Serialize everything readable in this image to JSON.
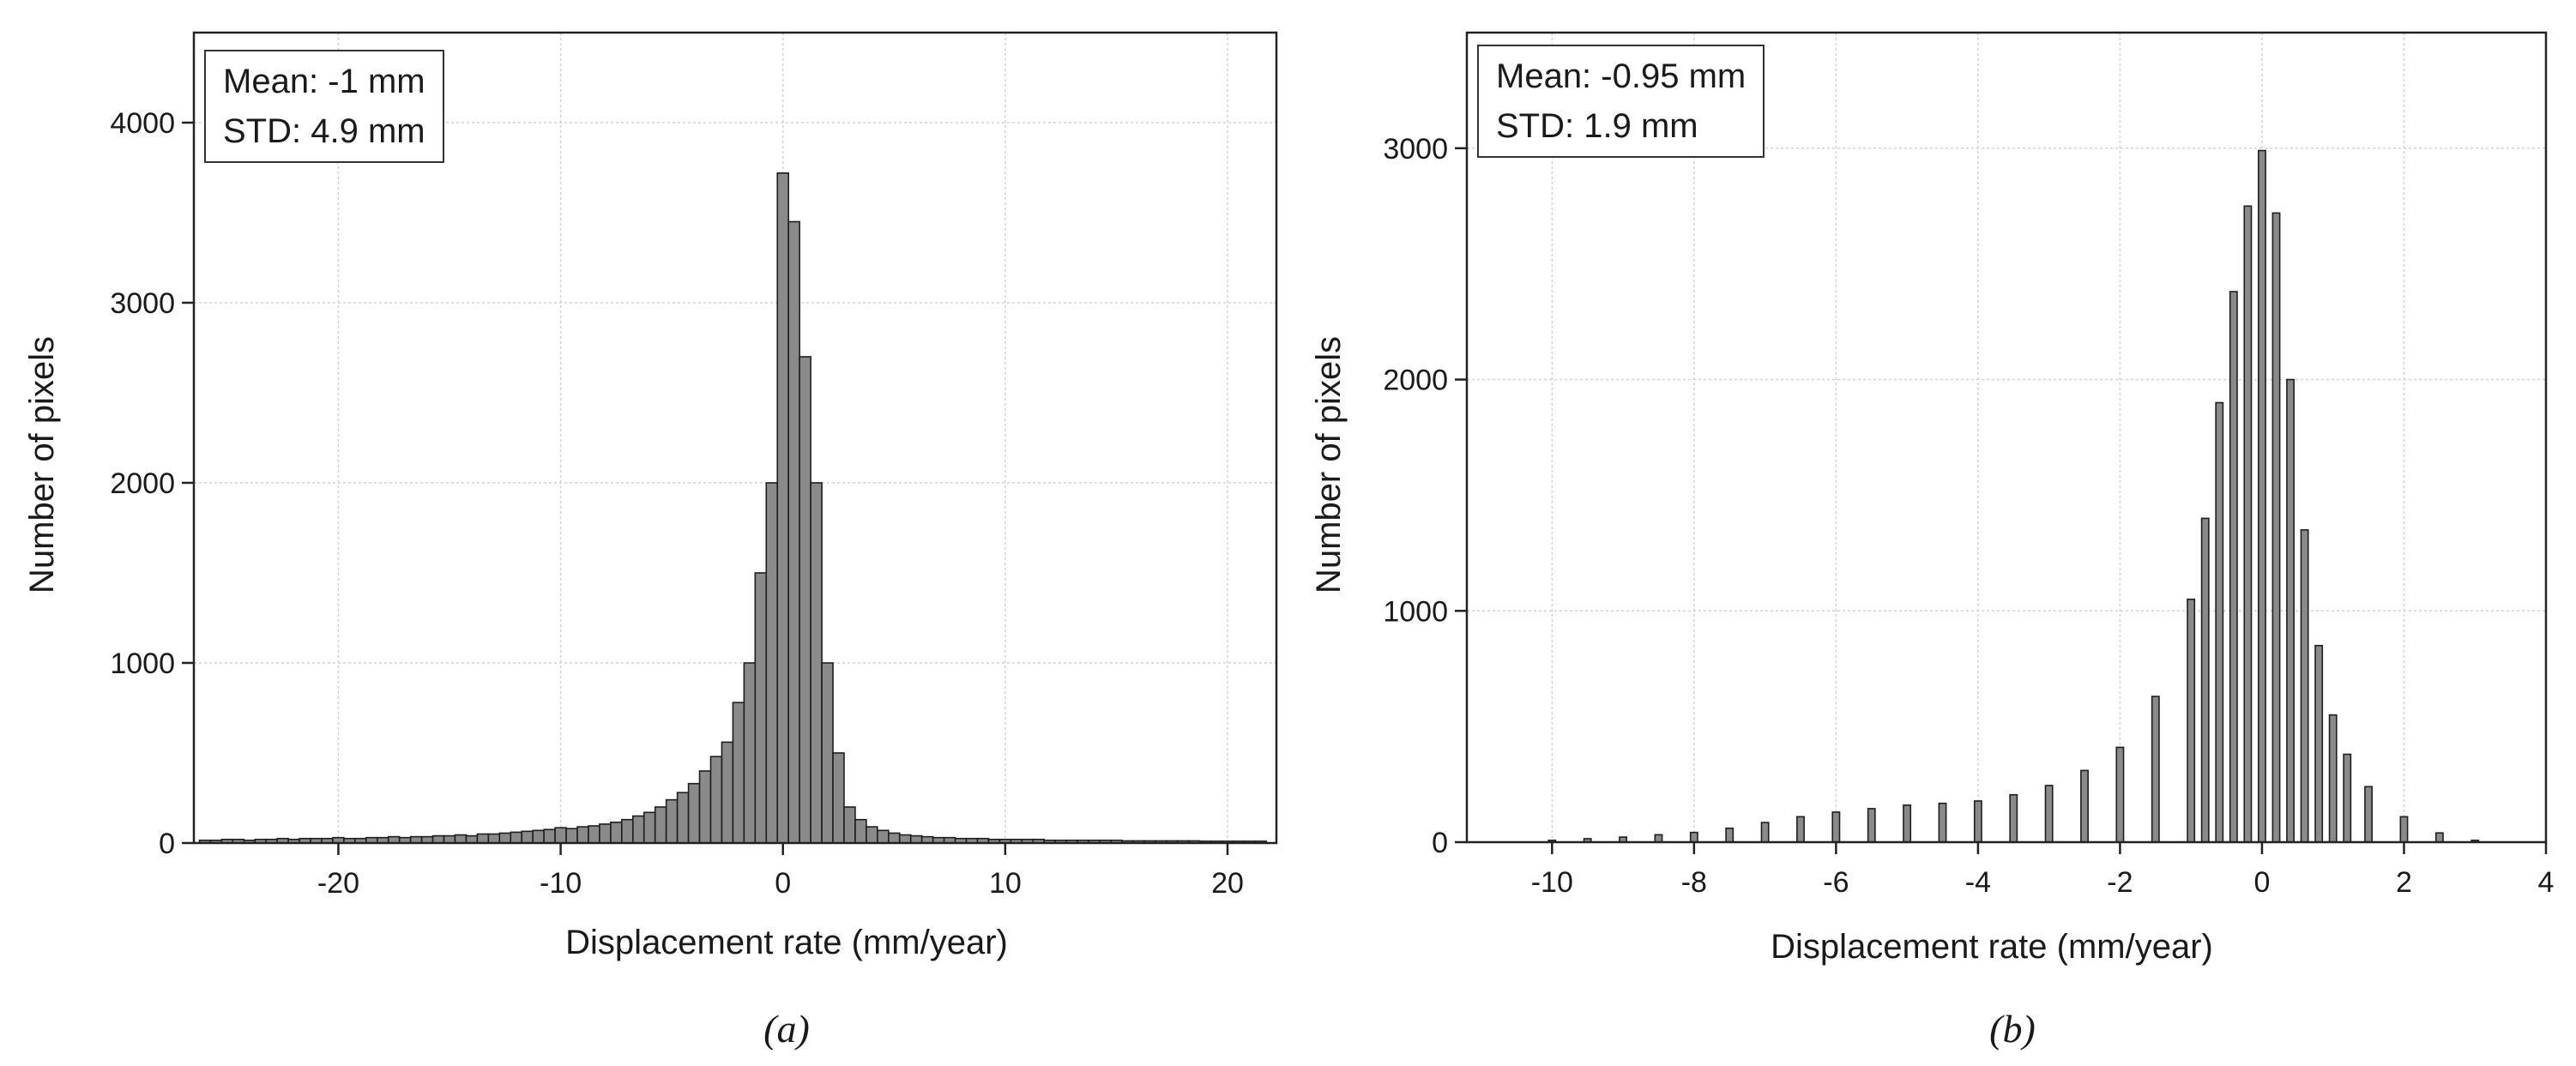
{
  "chart_data": [
    {
      "type": "bar",
      "panel_label": "(a)",
      "xlabel": "Displacement rate (mm/year)",
      "ylabel": "Number of pixels",
      "xlim": [
        -26.5,
        22.2
      ],
      "ylim": [
        0,
        4500
      ],
      "xticks": [
        -20,
        -10,
        0,
        10,
        20
      ],
      "yticks": [
        0,
        1000,
        2000,
        3000,
        4000
      ],
      "grid": true,
      "bin_width": 0.5,
      "annotation": {
        "lines": [
          "Mean: -1 mm",
          "STD: 4.9 mm"
        ],
        "position": "top-left"
      },
      "bars": [
        [
          -26,
          15
        ],
        [
          -25.5,
          15
        ],
        [
          -25,
          20
        ],
        [
          -24.5,
          20
        ],
        [
          -24,
          15
        ],
        [
          -23.5,
          20
        ],
        [
          -23,
          20
        ],
        [
          -22.5,
          25
        ],
        [
          -22,
          20
        ],
        [
          -21.5,
          25
        ],
        [
          -21,
          25
        ],
        [
          -20.5,
          25
        ],
        [
          -20,
          30
        ],
        [
          -19.5,
          25
        ],
        [
          -19,
          25
        ],
        [
          -18.5,
          30
        ],
        [
          -18,
          30
        ],
        [
          -17.5,
          35
        ],
        [
          -17,
          30
        ],
        [
          -16.5,
          35
        ],
        [
          -16,
          35
        ],
        [
          -15.5,
          40
        ],
        [
          -15,
          40
        ],
        [
          -14.5,
          45
        ],
        [
          -14,
          40
        ],
        [
          -13.5,
          50
        ],
        [
          -13,
          50
        ],
        [
          -12.5,
          55
        ],
        [
          -12,
          60
        ],
        [
          -11.5,
          65
        ],
        [
          -11,
          70
        ],
        [
          -10.5,
          75
        ],
        [
          -10,
          85
        ],
        [
          -9.5,
          80
        ],
        [
          -9,
          90
        ],
        [
          -8.5,
          95
        ],
        [
          -8,
          105
        ],
        [
          -7.5,
          115
        ],
        [
          -7,
          130
        ],
        [
          -6.5,
          150
        ],
        [
          -6,
          170
        ],
        [
          -5.5,
          200
        ],
        [
          -5,
          240
        ],
        [
          -4.5,
          280
        ],
        [
          -4,
          330
        ],
        [
          -3.5,
          400
        ],
        [
          -3,
          480
        ],
        [
          -2.5,
          560
        ],
        [
          -2,
          780
        ],
        [
          -1.5,
          1000
        ],
        [
          -1,
          1500
        ],
        [
          -0.5,
          2000
        ],
        [
          0,
          3720
        ],
        [
          0.5,
          3450
        ],
        [
          1,
          2700
        ],
        [
          1.5,
          2000
        ],
        [
          2,
          1000
        ],
        [
          2.5,
          500
        ],
        [
          3,
          200
        ],
        [
          3.5,
          130
        ],
        [
          4,
          90
        ],
        [
          4.5,
          70
        ],
        [
          5,
          55
        ],
        [
          5.5,
          45
        ],
        [
          6,
          40
        ],
        [
          6.5,
          35
        ],
        [
          7,
          30
        ],
        [
          7.5,
          30
        ],
        [
          8,
          25
        ],
        [
          8.5,
          25
        ],
        [
          9,
          25
        ],
        [
          9.5,
          20
        ],
        [
          10,
          20
        ],
        [
          10.5,
          20
        ],
        [
          11,
          20
        ],
        [
          11.5,
          20
        ],
        [
          12,
          15
        ],
        [
          12.5,
          15
        ],
        [
          13,
          15
        ],
        [
          13.5,
          15
        ],
        [
          14,
          15
        ],
        [
          14.5,
          15
        ],
        [
          15,
          15
        ],
        [
          15.5,
          12
        ],
        [
          16,
          12
        ],
        [
          16.5,
          12
        ],
        [
          17,
          12
        ],
        [
          17.5,
          12
        ],
        [
          18,
          12
        ],
        [
          18.5,
          12
        ],
        [
          19,
          10
        ],
        [
          19.5,
          10
        ],
        [
          20,
          10
        ],
        [
          20.5,
          10
        ],
        [
          21,
          10
        ],
        [
          21.5,
          10
        ]
      ]
    },
    {
      "type": "bar",
      "panel_label": "(b)",
      "xlabel": "Displacement rate (mm/year)",
      "ylabel": "Number of pixels",
      "xlim": [
        -11.2,
        4
      ],
      "ylim": [
        0,
        3500
      ],
      "xticks": [
        -10,
        -8,
        -6,
        -4,
        -2,
        0,
        2,
        4
      ],
      "yticks": [
        0,
        1000,
        2000,
        3000
      ],
      "grid": true,
      "bin_width": 0.1,
      "annotation": {
        "lines": [
          "Mean: -0.95 mm",
          "STD: 1.9 mm"
        ],
        "position": "top-left"
      },
      "bars": [
        [
          -10,
          8
        ],
        [
          -9.5,
          15
        ],
        [
          -9,
          22
        ],
        [
          -8.5,
          32
        ],
        [
          -8,
          42
        ],
        [
          -7.5,
          60
        ],
        [
          -7,
          85
        ],
        [
          -6.5,
          110
        ],
        [
          -6,
          130
        ],
        [
          -5.5,
          145
        ],
        [
          -5,
          160
        ],
        [
          -4.5,
          168
        ],
        [
          -4,
          178
        ],
        [
          -3.5,
          205
        ],
        [
          -3,
          245
        ],
        [
          -2.5,
          310
        ],
        [
          -2,
          410
        ],
        [
          -1.5,
          630
        ],
        [
          -1,
          1050
        ],
        [
          -0.8,
          1400
        ],
        [
          -0.6,
          1900
        ],
        [
          -0.4,
          2380
        ],
        [
          -0.2,
          2750
        ],
        [
          0,
          2990
        ],
        [
          0.2,
          2720
        ],
        [
          0.4,
          2000
        ],
        [
          0.6,
          1350
        ],
        [
          0.8,
          850
        ],
        [
          1,
          550
        ],
        [
          1.2,
          380
        ],
        [
          1.5,
          240
        ],
        [
          2,
          110
        ],
        [
          2.5,
          40
        ],
        [
          3,
          8
        ]
      ]
    }
  ]
}
